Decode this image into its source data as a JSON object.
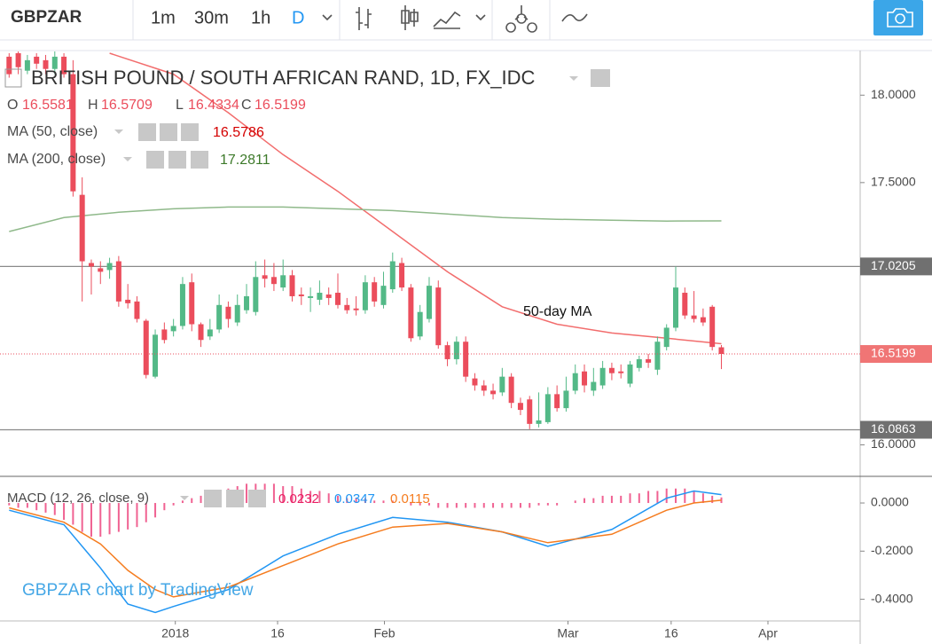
{
  "toolbar": {
    "symbol": "GBPZAR",
    "intervals": [
      "1m",
      "30m",
      "1h",
      "D"
    ]
  },
  "chart_data": [
    {
      "type": "candlestick",
      "title": "BRITISH POUND / SOUTH AFRICAN RAND, 1D, FX_IDC",
      "ohlc_labels": [
        "O",
        "H",
        "L",
        "C"
      ],
      "open": [
        18.22,
        18.24,
        18.14,
        18.22,
        18.2,
        18.15,
        18.22,
        18.12,
        17.43,
        17.04,
        17.01,
        17.0,
        17.05,
        16.83,
        16.82,
        16.71,
        16.39,
        16.66,
        16.65,
        16.68,
        16.93,
        16.69,
        16.62,
        16.66,
        16.79,
        16.7,
        16.77,
        16.76,
        16.97,
        16.96,
        16.9,
        16.97,
        16.86,
        16.84,
        16.83,
        16.86,
        16.87,
        16.8,
        16.78,
        16.77,
        16.93,
        16.8,
        16.89,
        17.04,
        16.9,
        16.62,
        16.72,
        16.9,
        16.57,
        16.49,
        16.59,
        16.38,
        16.34,
        16.31,
        16.3,
        16.39,
        16.24,
        16.26,
        16.12,
        16.13,
        16.29,
        16.21,
        16.31,
        16.42,
        16.31,
        16.34,
        16.44,
        16.42,
        16.35,
        16.44,
        16.49,
        16.43,
        16.56,
        16.67,
        16.87,
        16.74,
        16.73,
        16.79,
        16.5581
      ],
      "high": [
        18.24,
        18.25,
        18.23,
        18.24,
        18.23,
        18.25,
        18.24,
        18.2,
        17.53,
        17.06,
        17.05,
        17.07,
        17.08,
        16.92,
        16.85,
        16.72,
        16.66,
        16.7,
        16.72,
        16.96,
        16.98,
        16.7,
        16.72,
        16.86,
        16.82,
        16.86,
        16.92,
        17.05,
        17.06,
        17.04,
        17.06,
        17.0,
        16.9,
        16.9,
        16.94,
        16.9,
        16.98,
        16.84,
        16.85,
        16.97,
        16.96,
        16.99,
        17.1,
        17.07,
        16.92,
        16.8,
        16.96,
        16.94,
        16.59,
        16.62,
        16.62,
        16.41,
        16.37,
        16.35,
        16.44,
        16.41,
        16.27,
        16.28,
        16.3,
        16.33,
        16.34,
        16.39,
        16.46,
        16.46,
        16.44,
        16.48,
        16.47,
        16.46,
        16.48,
        16.51,
        16.52,
        16.62,
        16.69,
        17.02,
        16.9,
        16.88,
        16.78,
        16.8,
        16.5709
      ],
      "low": [
        18.1,
        18.12,
        18.12,
        18.15,
        18.12,
        18.12,
        18.1,
        17.42,
        16.82,
        16.86,
        16.92,
        16.95,
        16.79,
        16.78,
        16.7,
        16.38,
        16.38,
        16.58,
        16.62,
        16.66,
        16.65,
        16.56,
        16.6,
        16.64,
        16.67,
        16.68,
        16.75,
        16.74,
        16.9,
        16.88,
        16.88,
        16.82,
        16.8,
        16.76,
        16.8,
        16.8,
        16.78,
        16.75,
        16.74,
        16.75,
        16.79,
        16.78,
        16.87,
        16.88,
        16.59,
        16.6,
        16.7,
        16.55,
        16.45,
        16.46,
        16.36,
        16.31,
        16.28,
        16.26,
        16.28,
        16.21,
        16.17,
        16.09,
        16.1,
        16.12,
        16.19,
        16.19,
        16.29,
        16.3,
        16.28,
        16.32,
        16.37,
        16.38,
        16.33,
        16.42,
        16.44,
        16.4,
        16.54,
        16.65,
        16.72,
        16.7,
        16.68,
        16.54,
        16.4334
      ],
      "close": [
        18.12,
        18.16,
        18.2,
        18.18,
        18.15,
        18.22,
        18.12,
        17.45,
        17.05,
        17.02,
        16.99,
        17.04,
        16.82,
        16.81,
        16.72,
        16.4,
        16.63,
        16.6,
        16.68,
        16.92,
        16.69,
        16.6,
        16.66,
        16.8,
        16.72,
        16.8,
        16.85,
        16.96,
        16.95,
        16.92,
        16.97,
        16.85,
        16.85,
        16.85,
        16.87,
        16.84,
        16.8,
        16.77,
        16.77,
        16.93,
        16.82,
        16.91,
        17.05,
        16.9,
        16.61,
        16.76,
        16.91,
        16.57,
        16.49,
        16.59,
        16.39,
        16.34,
        16.31,
        16.29,
        16.39,
        16.24,
        16.2,
        16.12,
        16.14,
        16.29,
        16.21,
        16.31,
        16.41,
        16.34,
        16.36,
        16.44,
        16.41,
        16.41,
        16.46,
        16.49,
        16.47,
        16.59,
        16.67,
        16.9,
        16.74,
        16.72,
        16.7,
        16.56,
        16.5199
      ],
      "up_color": "#53b987",
      "down_color": "#eb4d5c",
      "xlim": [
        -1,
        93.2
      ],
      "xticks": [
        {
          "value": 18.2,
          "label": "2018"
        },
        {
          "value": 29.4,
          "label": "16"
        },
        {
          "value": 41.1,
          "label": "Feb"
        },
        {
          "value": 61.2,
          "label": "Mar"
        },
        {
          "value": 72.5,
          "label": "16"
        },
        {
          "value": 83.1,
          "label": "Apr"
        }
      ],
      "ylim": [
        15.82,
        18.25
      ],
      "yticks": [
        {
          "value": 18,
          "label": "18.0000"
        },
        {
          "value": 17.5,
          "label": "17.5000"
        },
        {
          "value": 16,
          "label": "16.0000"
        }
      ],
      "hlines": [
        17.0205,
        16.0863
      ],
      "lines": [
        {
          "name": "MA (50, close)",
          "color": "#f26d6d",
          "x": [
            11,
            18,
            24,
            30,
            36,
            42,
            48,
            54,
            60,
            66,
            72,
            78
          ],
          "values": [
            18.24,
            18.12,
            17.9,
            17.66,
            17.45,
            17.22,
            16.99,
            16.79,
            16.69,
            16.64,
            16.61,
            16.5786
          ]
        },
        {
          "name": "MA (200, close)",
          "color": "#8fb98a",
          "x": [
            0,
            6,
            12,
            18,
            24,
            30,
            36,
            42,
            48,
            54,
            60,
            66,
            72,
            78
          ],
          "values": [
            17.22,
            17.3,
            17.33,
            17.35,
            17.36,
            17.36,
            17.35,
            17.34,
            17.32,
            17.3,
            17.29,
            17.285,
            17.28,
            17.2811
          ]
        }
      ],
      "annotation": "50-day MA"
    },
    {
      "type": "macd",
      "name": "MACD (12, 26, close, 9)",
      "xlim": [
        -1,
        93.2
      ],
      "ylim": [
        -0.49,
        0.107
      ],
      "yticks": [
        {
          "value": 0,
          "label": "0.0000"
        },
        {
          "value": -0.2,
          "label": "-0.2000"
        },
        {
          "value": -0.4,
          "label": "-0.4000"
        }
      ],
      "histogram": {
        "color": "#f06292",
        "values": [
          -0.01,
          -0.02,
          -0.02,
          -0.03,
          -0.04,
          -0.05,
          -0.07,
          -0.09,
          -0.12,
          -0.14,
          -0.14,
          -0.13,
          -0.12,
          -0.11,
          -0.1,
          -0.08,
          -0.06,
          -0.03,
          -0.01,
          0.01,
          0.02,
          0.03,
          0.04,
          0.05,
          0.06,
          0.07,
          0.08,
          0.08,
          0.08,
          0.08,
          0.07,
          0.07,
          0.06,
          0.05,
          0.05,
          0.04,
          0.03,
          0.02,
          0.02,
          0.02,
          0.01,
          0.01,
          0.01,
          0.0,
          -0.01,
          -0.01,
          -0.01,
          -0.02,
          -0.02,
          -0.02,
          -0.02,
          -0.02,
          -0.02,
          -0.02,
          -0.02,
          -0.02,
          -0.02,
          -0.02,
          -0.01,
          -0.01,
          -0.01,
          0.0,
          0.01,
          0.02,
          0.02,
          0.03,
          0.03,
          0.03,
          0.04,
          0.04,
          0.05,
          0.05,
          0.06,
          0.06,
          0.06,
          0.05,
          0.04,
          0.03,
          0.0232
        ]
      },
      "series": [
        {
          "color": "#2196f3",
          "x": [
            0,
            6,
            10,
            13,
            16,
            18,
            24,
            30,
            36,
            42,
            48,
            54,
            59,
            66,
            72,
            75,
            78
          ],
          "values": [
            -0.03,
            -0.09,
            -0.27,
            -0.42,
            -0.455,
            -0.43,
            -0.36,
            -0.22,
            -0.13,
            -0.06,
            -0.08,
            -0.12,
            -0.18,
            -0.11,
            0.02,
            0.05,
            0.0347
          ]
        },
        {
          "color": "#f57c1f",
          "x": [
            0,
            6,
            10,
            13,
            16,
            18,
            24,
            30,
            36,
            42,
            48,
            54,
            59,
            66,
            72,
            75,
            78
          ],
          "values": [
            -0.02,
            -0.08,
            -0.17,
            -0.28,
            -0.36,
            -0.39,
            -0.35,
            -0.26,
            -0.17,
            -0.1,
            -0.085,
            -0.12,
            -0.165,
            -0.13,
            -0.03,
            0.0,
            0.0115
          ]
        }
      ]
    }
  ],
  "watermark": "GBPZAR chart by TradingView"
}
